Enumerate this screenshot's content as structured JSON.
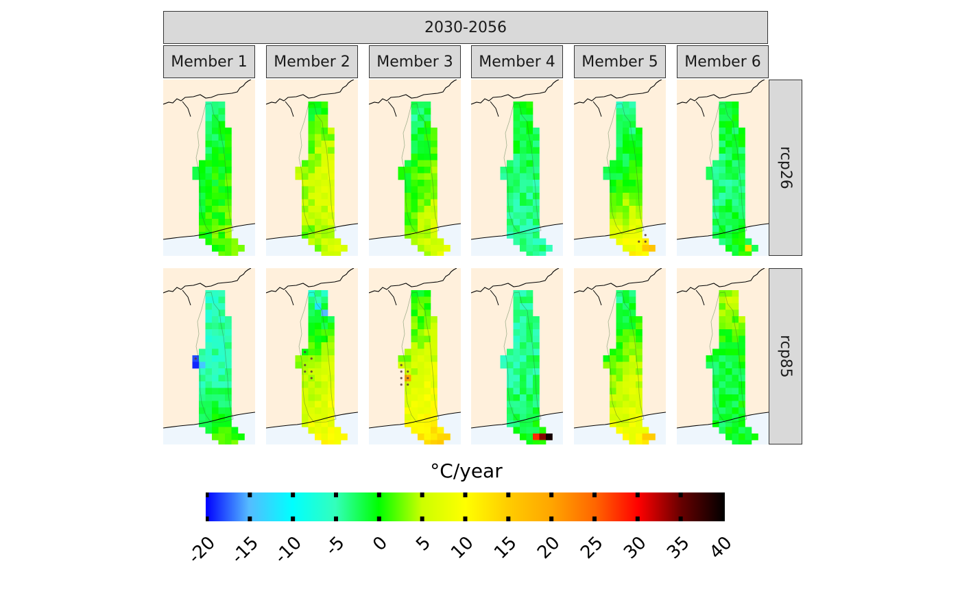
{
  "figure": {
    "period_label": "2030-2056",
    "members": [
      "Member 1",
      "Member 2",
      "Member 3",
      "Member 4",
      "Member 5",
      "Member 6"
    ],
    "scenarios": [
      "rcp26",
      "rcp85"
    ]
  },
  "legend": {
    "title": "°C/year",
    "min": -20,
    "max": 40,
    "ticks": [
      "-20",
      "-15",
      "-10",
      "-5",
      "0",
      "5",
      "10",
      "15",
      "20",
      "25",
      "30",
      "35",
      "40"
    ],
    "colors": [
      "#0000ff",
      "#55bbff",
      "#00ffff",
      "#33ffbb",
      "#00ff00",
      "#ccff00",
      "#ffff00",
      "#ffcc00",
      "#ffa500",
      "#ff6600",
      "#ff0000",
      "#660000",
      "#000000"
    ]
  },
  "colors": {
    "land": "#fff0dc",
    "sea": "#eef6fd",
    "strip": "#d9d9d9",
    "strip_border": "#333333"
  },
  "chart_data": {
    "type": "heatmap",
    "title": "",
    "facet_columns": [
      "Member 1",
      "Member 2",
      "Member 3",
      "Member 4",
      "Member 5",
      "Member 6"
    ],
    "facet_rows": [
      "rcp26",
      "rcp85"
    ],
    "value_range": [
      -20,
      40
    ],
    "units": "°C/year",
    "panels": [
      {
        "scenario": "rcp26",
        "member": "Member 1",
        "base": 0,
        "north": -3,
        "south": 2,
        "east": 2,
        "hotspots": [],
        "stippled_cells": []
      },
      {
        "scenario": "rcp26",
        "member": "Member 2",
        "base": 6,
        "north": -6,
        "south": -2,
        "east": 3,
        "hotspots": [],
        "stippled_cells": []
      },
      {
        "scenario": "rcp26",
        "member": "Member 3",
        "base": 2,
        "north": -5,
        "south": 3,
        "east": 3,
        "hotspots": [],
        "stippled_cells": []
      },
      {
        "scenario": "rcp26",
        "member": "Member 4",
        "base": -3,
        "north": 2,
        "south": -1,
        "east": 0,
        "hotspots": [],
        "stippled_cells": []
      },
      {
        "scenario": "rcp26",
        "member": "Member 5",
        "base": 0,
        "north": -4,
        "south": 10,
        "east": 2,
        "hotspots": [
          {
            "col": 7,
            "row": 22,
            "value": 15
          },
          {
            "col": 8,
            "row": 22,
            "value": 16
          },
          {
            "col": 7,
            "row": 21,
            "value": 12
          }
        ],
        "stippled_cells": [
          [
            6,
            21
          ],
          [
            7,
            21
          ],
          [
            7,
            20
          ]
        ]
      },
      {
        "scenario": "rcp26",
        "member": "Member 6",
        "base": -3,
        "north": 2,
        "south": 2,
        "east": 1,
        "hotspots": [
          {
            "col": 7,
            "row": 22,
            "value": 13
          }
        ],
        "stippled_cells": []
      },
      {
        "scenario": "rcp85",
        "member": "Member 1",
        "base": -5,
        "north": 0,
        "south": 6,
        "east": 1,
        "hotspots": [
          {
            "col": 1,
            "row": 10,
            "value": -18
          },
          {
            "col": 1,
            "row": 11,
            "value": -19
          },
          {
            "col": 2,
            "row": 11,
            "value": -14
          },
          {
            "col": 1,
            "row": 9,
            "value": -14
          }
        ],
        "stippled_cells": [
          [
            1,
            10
          ]
        ]
      },
      {
        "scenario": "rcp85",
        "member": "Member 2",
        "base": 5,
        "north": -10,
        "south": 4,
        "east": 2,
        "hotspots": [
          {
            "col": 5,
            "row": 3,
            "value": -15
          },
          {
            "col": 6,
            "row": 3,
            "value": -15
          },
          {
            "col": 4,
            "row": 2,
            "value": -12
          }
        ],
        "stippled_cells": [
          [
            2,
            9
          ],
          [
            3,
            10
          ],
          [
            2,
            11
          ],
          [
            3,
            12
          ],
          [
            3,
            13
          ],
          [
            2,
            12
          ]
        ]
      },
      {
        "scenario": "rcp85",
        "member": "Member 3",
        "base": 6,
        "north": -6,
        "south": 6,
        "east": 2,
        "hotspots": [
          {
            "col": 1,
            "row": 12,
            "value": 20
          },
          {
            "col": 2,
            "row": 13,
            "value": 20
          },
          {
            "col": 1,
            "row": 13,
            "value": 19
          }
        ],
        "stippled_cells": [
          [
            1,
            11
          ],
          [
            1,
            12
          ],
          [
            1,
            13
          ],
          [
            2,
            12
          ],
          [
            2,
            13
          ],
          [
            2,
            14
          ],
          [
            1,
            14
          ]
        ]
      },
      {
        "scenario": "rcp85",
        "member": "Member 4",
        "base": -4,
        "north": 0,
        "south": 3,
        "east": 1,
        "hotspots": [
          {
            "col": 6,
            "row": 22,
            "value": 28
          },
          {
            "col": 7,
            "row": 22,
            "value": 34
          },
          {
            "col": 8,
            "row": 22,
            "value": 39
          }
        ],
        "stippled_cells": []
      },
      {
        "scenario": "rcp85",
        "member": "Member 5",
        "base": 4,
        "north": -7,
        "south": 5,
        "east": 2,
        "hotspots": [
          {
            "col": 7,
            "row": 22,
            "value": 15
          },
          {
            "col": 8,
            "row": 22,
            "value": 15
          }
        ],
        "stippled_cells": []
      },
      {
        "scenario": "rcp85",
        "member": "Member 6",
        "base": -2,
        "north": 7,
        "south": 1,
        "east": 1,
        "hotspots": [],
        "stippled_cells": []
      }
    ]
  }
}
